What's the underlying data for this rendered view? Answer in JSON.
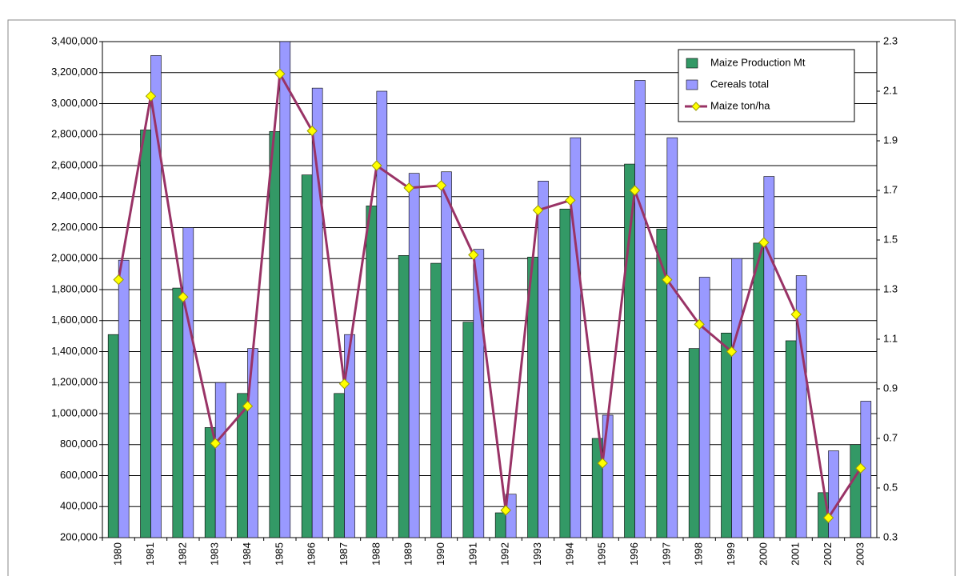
{
  "chart_data": {
    "type": "bar",
    "categories": [
      "1980",
      "1981",
      "1982",
      "1983",
      "1984",
      "1985",
      "1986",
      "1987",
      "1988",
      "1989",
      "1990",
      "1991",
      "1992",
      "1993",
      "1994",
      "1995",
      "1996",
      "1997",
      "1998",
      "1999",
      "2000",
      "2001",
      "2002",
      "2003"
    ],
    "series": [
      {
        "name": "Maize Production Mt",
        "color": "#339966",
        "type": "bar",
        "values": [
          1510000,
          2830000,
          1810000,
          910000,
          1130000,
          2820000,
          2540000,
          1130000,
          2340000,
          2020000,
          1970000,
          1590000,
          360000,
          2010000,
          2320000,
          840000,
          2610000,
          2190000,
          1420000,
          1520000,
          2100000,
          1470000,
          490000,
          800000
        ]
      },
      {
        "name": "Cereals total",
        "color": "#9999ff",
        "type": "bar",
        "values": [
          1990000,
          3310000,
          2200000,
          1200000,
          1420000,
          3400000,
          3100000,
          1510000,
          3080000,
          2550000,
          2560000,
          2060000,
          480000,
          2500000,
          2780000,
          990000,
          3150000,
          2780000,
          1880000,
          2000000,
          2530000,
          1890000,
          760000,
          1080000
        ]
      },
      {
        "name": "Maize ton/ha",
        "color": "#993366",
        "marker_color": "#ffff00",
        "type": "line",
        "axis": "y2",
        "values": [
          1.34,
          2.08,
          1.27,
          0.68,
          0.83,
          2.17,
          1.94,
          0.92,
          1.8,
          1.71,
          1.72,
          1.44,
          0.41,
          1.62,
          1.66,
          0.6,
          1.7,
          1.34,
          1.16,
          1.05,
          1.49,
          1.2,
          0.38,
          0.58
        ]
      }
    ],
    "ylim": [
      200000,
      3400000
    ],
    "yticks": [
      {
        "value": 200000,
        "label": "200,000"
      },
      {
        "value": 400000,
        "label": "400,000"
      },
      {
        "value": 600000,
        "label": "600,000"
      },
      {
        "value": 800000,
        "label": "800,000"
      },
      {
        "value": 1000000,
        "label": "1,000,000"
      },
      {
        "value": 1200000,
        "label": "1,200,000"
      },
      {
        "value": 1400000,
        "label": "1,400,000"
      },
      {
        "value": 1600000,
        "label": "1,600,000"
      },
      {
        "value": 1800000,
        "label": "1,800,000"
      },
      {
        "value": 2000000,
        "label": "2,000,000"
      },
      {
        "value": 2200000,
        "label": "2,200,000"
      },
      {
        "value": 2400000,
        "label": "2,400,000"
      },
      {
        "value": 2600000,
        "label": "2,600,000"
      },
      {
        "value": 2800000,
        "label": "2,800,000"
      },
      {
        "value": 3000000,
        "label": "3,000,000"
      },
      {
        "value": 3200000,
        "label": "3,200,000"
      },
      {
        "value": 3400000,
        "label": "3,400,000"
      }
    ],
    "y2lim": [
      0.3,
      2.3
    ],
    "y2ticks": [
      0.3,
      0.5,
      0.7,
      0.9,
      1.1,
      1.3,
      1.5,
      1.7,
      1.9,
      2.1,
      2.3
    ],
    "grid": true,
    "legend": "top-right"
  }
}
